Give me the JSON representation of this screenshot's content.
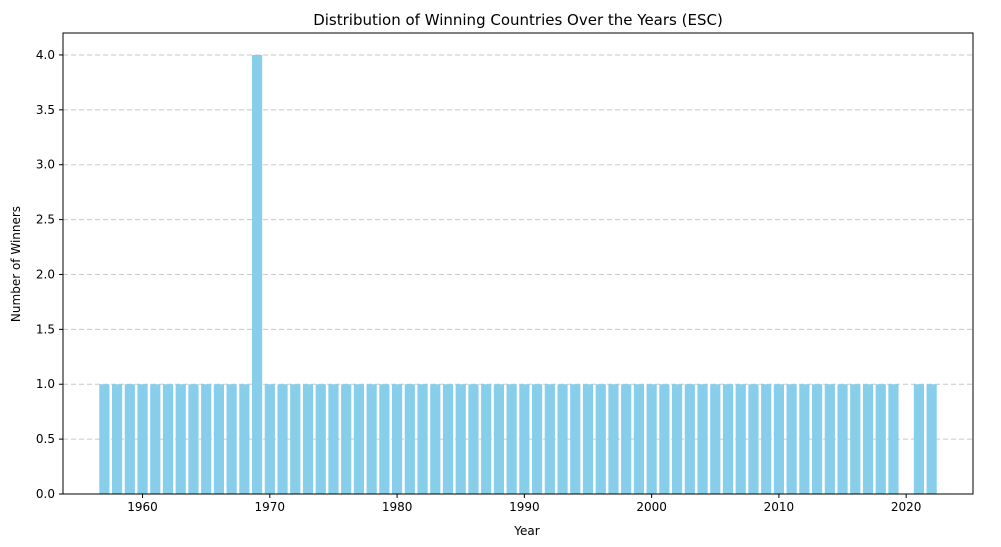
{
  "chart_data": {
    "type": "bar",
    "title": "Distribution of Winning Countries Over the Years (ESC)",
    "xlabel": "Year",
    "ylabel": "Number of Winners",
    "x": [
      1957,
      1958,
      1959,
      1960,
      1961,
      1962,
      1963,
      1964,
      1965,
      1966,
      1967,
      1968,
      1969,
      1970,
      1971,
      1972,
      1973,
      1974,
      1975,
      1976,
      1977,
      1978,
      1979,
      1980,
      1981,
      1982,
      1983,
      1984,
      1985,
      1986,
      1987,
      1988,
      1989,
      1990,
      1991,
      1992,
      1993,
      1994,
      1995,
      1996,
      1997,
      1998,
      1999,
      2000,
      2001,
      2002,
      2003,
      2004,
      2005,
      2006,
      2007,
      2008,
      2009,
      2010,
      2011,
      2012,
      2013,
      2014,
      2015,
      2016,
      2017,
      2018,
      2019,
      2021,
      2022
    ],
    "values": [
      1,
      1,
      1,
      1,
      1,
      1,
      1,
      1,
      1,
      1,
      1,
      1,
      4,
      1,
      1,
      1,
      1,
      1,
      1,
      1,
      1,
      1,
      1,
      1,
      1,
      1,
      1,
      1,
      1,
      1,
      1,
      1,
      1,
      1,
      1,
      1,
      1,
      1,
      1,
      1,
      1,
      1,
      1,
      1,
      1,
      1,
      1,
      1,
      1,
      1,
      1,
      1,
      1,
      1,
      1,
      1,
      1,
      1,
      1,
      1,
      1,
      1,
      1,
      1,
      1
    ],
    "xlim": [
      1953.75,
      2025.25
    ],
    "ylim": [
      0,
      4.2
    ],
    "xticks": [
      "1960",
      "1970",
      "1980",
      "1990",
      "2000",
      "2010",
      "2020"
    ],
    "yticks": [
      "0.0",
      "0.5",
      "1.0",
      "1.5",
      "2.0",
      "2.5",
      "3.0",
      "3.5",
      "4.0"
    ],
    "grid": "y-dashed",
    "bar_color": "#87CEEB",
    "grid_color": "#c8c8c8"
  }
}
